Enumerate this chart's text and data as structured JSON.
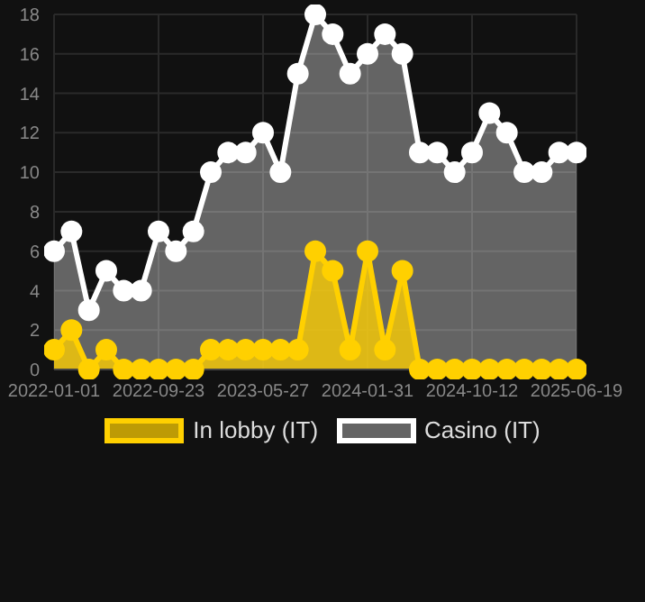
{
  "chart_data": {
    "type": "area",
    "categories": [
      "2022-01-01",
      null,
      null,
      null,
      null,
      null,
      "2022-09-23",
      null,
      null,
      null,
      null,
      null,
      "2023-05-27",
      null,
      null,
      null,
      null,
      null,
      "2024-01-31",
      null,
      null,
      null,
      null,
      null,
      "2024-10-12",
      null,
      null,
      null,
      null,
      null,
      "2025-06-19"
    ],
    "series": [
      {
        "name": "In lobby (IT)",
        "color": "#ffd000",
        "values": [
          1,
          2,
          0,
          1,
          0,
          0,
          0,
          0,
          0,
          1,
          1,
          1,
          1,
          1,
          1,
          6,
          5,
          1,
          6,
          1,
          5,
          0,
          0,
          0,
          0,
          0,
          0,
          0,
          0,
          0,
          0
        ]
      },
      {
        "name": "Casino (IT)",
        "color": "#ffffff",
        "values": [
          6,
          7,
          3,
          5,
          4,
          4,
          7,
          6,
          7,
          10,
          11,
          11,
          12,
          10,
          15,
          18,
          17,
          15,
          16,
          17,
          16,
          11,
          11,
          10,
          11,
          13,
          12,
          10,
          10,
          11,
          11
        ]
      }
    ],
    "ylim": [
      0,
      18
    ],
    "yticks": [
      0,
      2,
      4,
      6,
      8,
      10,
      12,
      14,
      16,
      18
    ],
    "grid": true,
    "legend": "bottom",
    "marker": "circle"
  }
}
